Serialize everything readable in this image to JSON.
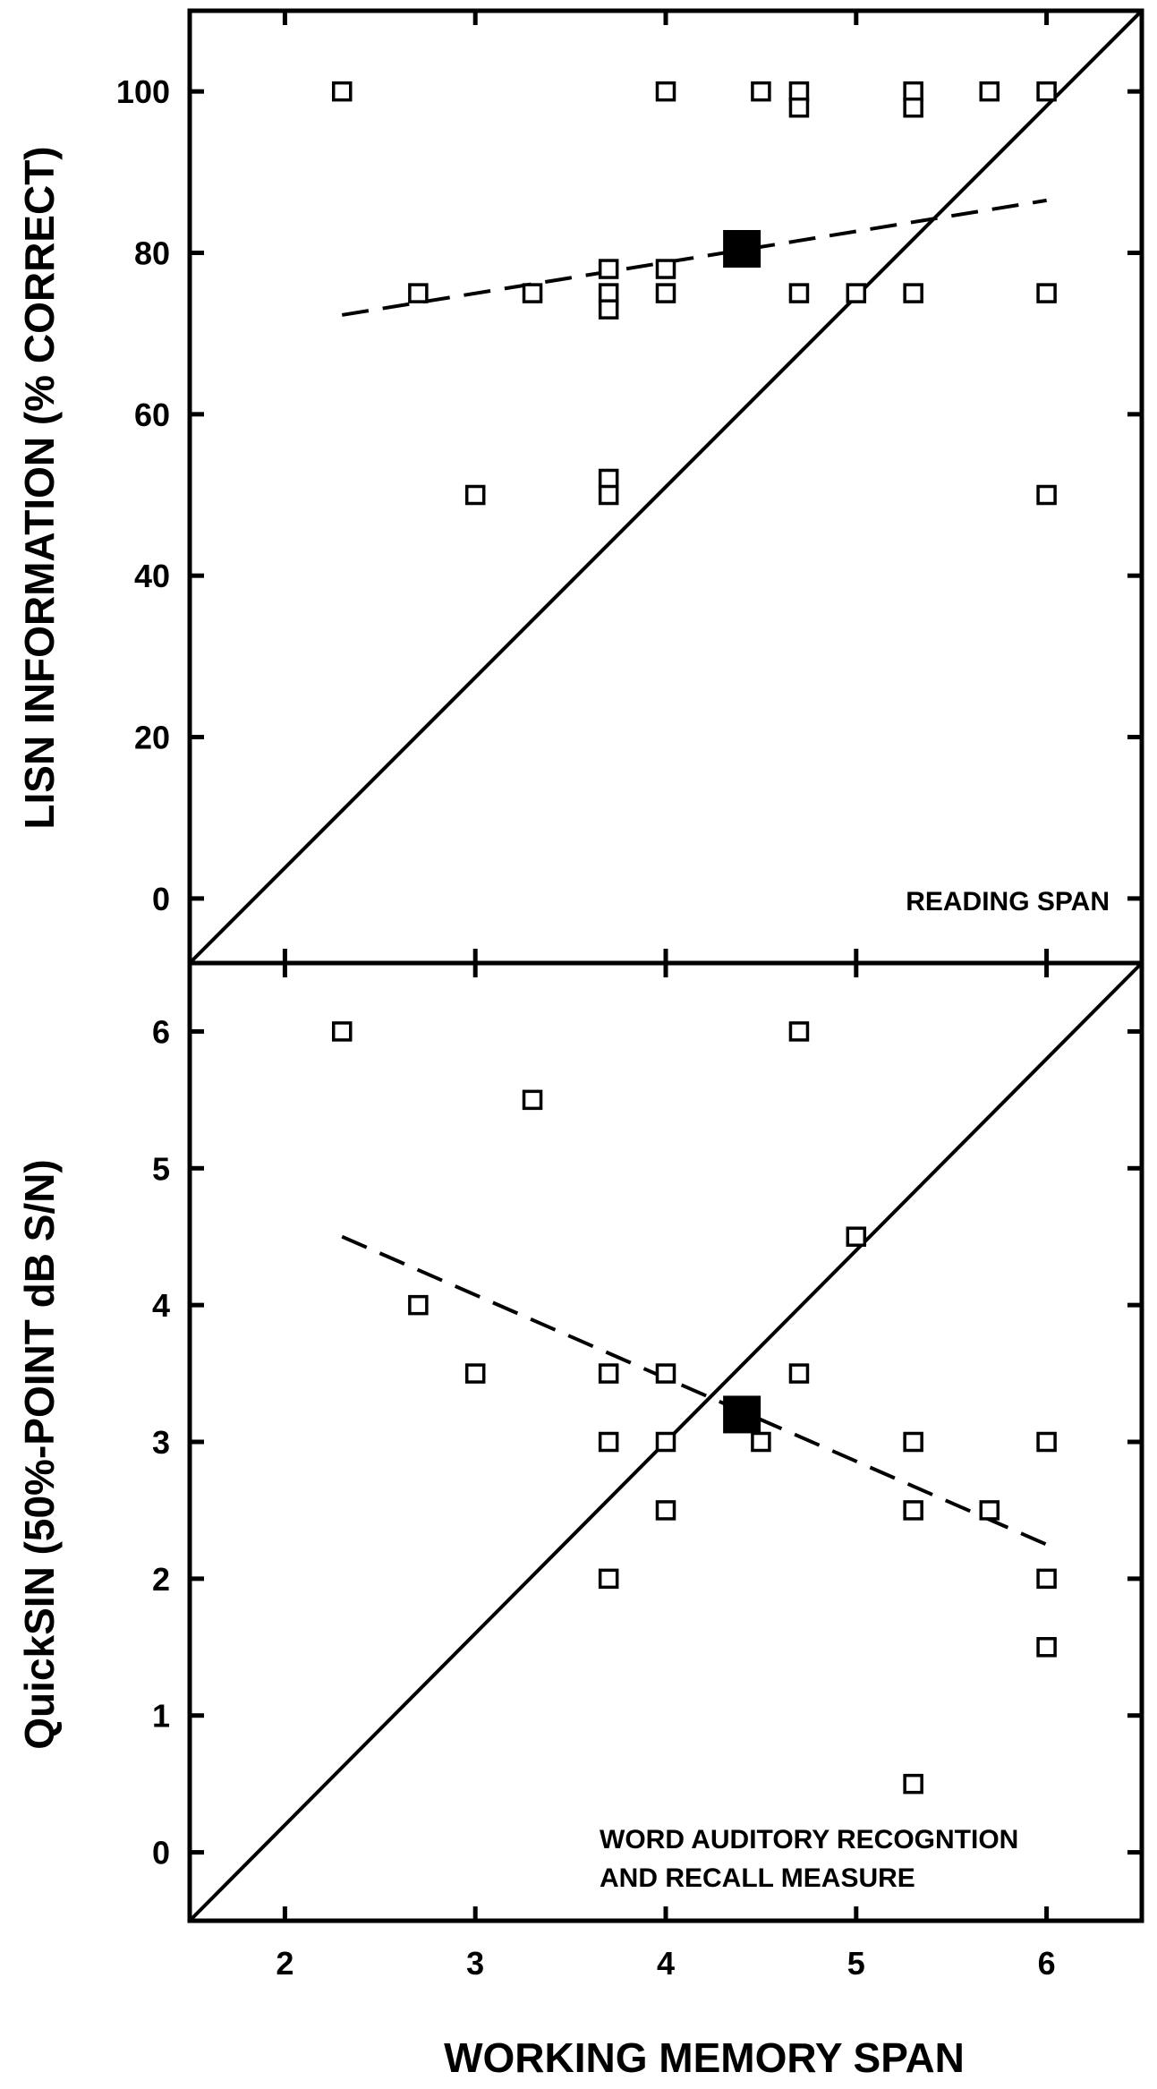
{
  "chart_data": [
    {
      "type": "scatter",
      "panel_label": "READING SPAN",
      "ylabel": "LISN INFORMATION (% CORRECT)",
      "xlim": [
        1.5,
        6.5
      ],
      "ylim": [
        -8,
        110
      ],
      "xticks": [
        2,
        3,
        4,
        5,
        6
      ],
      "yticks": [
        0,
        20,
        40,
        60,
        80,
        100
      ],
      "ytick_labels": [
        "0",
        "20",
        "40",
        "60",
        "80",
        "100"
      ],
      "grid": false,
      "points": [
        [
          2.3,
          100
        ],
        [
          4.0,
          100
        ],
        [
          4.5,
          100
        ],
        [
          4.7,
          100
        ],
        [
          4.7,
          98
        ],
        [
          5.3,
          100
        ],
        [
          5.3,
          98
        ],
        [
          5.7,
          100
        ],
        [
          6.0,
          100
        ],
        [
          2.7,
          75
        ],
        [
          3.3,
          75
        ],
        [
          3.7,
          78
        ],
        [
          3.7,
          75
        ],
        [
          3.7,
          73
        ],
        [
          4.0,
          78
        ],
        [
          4.0,
          75
        ],
        [
          4.7,
          75
        ],
        [
          5.0,
          75
        ],
        [
          5.3,
          75
        ],
        [
          6.0,
          75
        ],
        [
          3.0,
          50
        ],
        [
          3.7,
          52
        ],
        [
          3.7,
          50
        ],
        [
          6.0,
          50
        ]
      ],
      "mean_point": [
        4.4,
        80.5
      ],
      "regression_line": [
        [
          2.3,
          72.3
        ],
        [
          6.0,
          86.5
        ]
      ],
      "identity_line": [
        [
          1.5,
          -8
        ],
        [
          6.5,
          110
        ]
      ]
    },
    {
      "type": "scatter",
      "panel_label": [
        "WORD AUDITORY RECOGNTION",
        "AND RECALL MEASURE"
      ],
      "ylabel": "QuickSIN (50%-POINT dB S/N)",
      "xlabel": "WORKING MEMORY SPAN",
      "xlim": [
        1.5,
        6.5
      ],
      "ylim": [
        -0.5,
        6.5
      ],
      "xticks": [
        2,
        3,
        4,
        5,
        6
      ],
      "xtick_labels": [
        "2",
        "3",
        "4",
        "5",
        "6"
      ],
      "yticks": [
        0,
        1,
        2,
        3,
        4,
        5,
        6
      ],
      "ytick_labels": [
        "0",
        "1",
        "2",
        "3",
        "4",
        "5",
        "6"
      ],
      "grid": false,
      "points": [
        [
          2.3,
          6.0
        ],
        [
          4.7,
          6.0
        ],
        [
          3.3,
          5.5
        ],
        [
          5.0,
          4.5
        ],
        [
          2.7,
          4.0
        ],
        [
          3.0,
          3.5
        ],
        [
          3.7,
          3.5
        ],
        [
          4.0,
          3.5
        ],
        [
          4.7,
          3.5
        ],
        [
          3.7,
          3.0
        ],
        [
          4.0,
          3.0
        ],
        [
          4.5,
          3.0
        ],
        [
          5.3,
          3.0
        ],
        [
          6.0,
          3.0
        ],
        [
          4.0,
          2.5
        ],
        [
          5.3,
          2.5
        ],
        [
          5.7,
          2.5
        ],
        [
          3.7,
          2.0
        ],
        [
          6.0,
          2.0
        ],
        [
          6.0,
          1.5
        ],
        [
          5.3,
          0.5
        ]
      ],
      "mean_point": [
        4.4,
        3.2
      ],
      "regression_line": [
        [
          2.3,
          4.5
        ],
        [
          6.0,
          2.25
        ]
      ],
      "identity_line": [
        [
          1.5,
          -0.5
        ],
        [
          6.5,
          6.5
        ]
      ]
    }
  ]
}
